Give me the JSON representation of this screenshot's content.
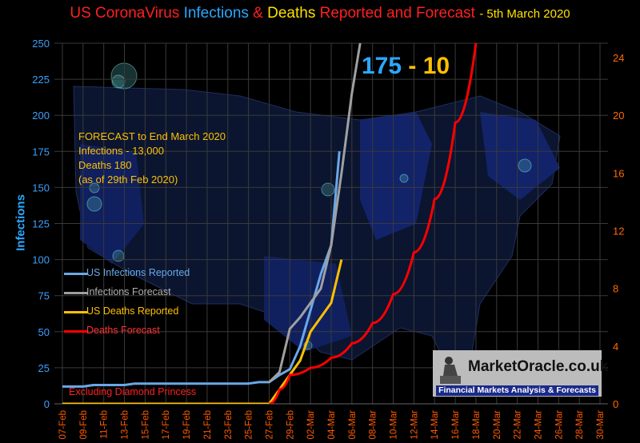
{
  "title": {
    "part1": "US CoronaVirus",
    "part2": "Infections",
    "part3": "&",
    "part4": "Deaths",
    "part5": "Reported and Forecast",
    "part6": "- 5th  March 2020"
  },
  "forecast_note": [
    "FORECAST to End March 2020",
    "Infections - 13,000",
    "Deaths 180",
    "(as of  29th Feb  2020)"
  ],
  "big_label": {
    "infections": "175",
    "sep": " - ",
    "deaths": "10"
  },
  "exclusion_note": "Excluding Diamond Princess",
  "logo": {
    "name": "MarketOracle.co.uk",
    "tagline": "Financial Markets Analysis & Forecasts"
  },
  "chart_data": {
    "type": "line",
    "ylabel": "Infections",
    "ylim": [
      0,
      250
    ],
    "y_ticks": [
      0,
      25,
      50,
      75,
      100,
      125,
      150,
      175,
      200,
      225,
      250
    ],
    "y2lim": [
      0,
      25
    ],
    "y2_ticks": [
      0,
      4,
      8,
      12,
      16,
      20,
      24
    ],
    "x": [
      "07-Feb",
      "08-Feb",
      "09-Feb",
      "10-Feb",
      "11-Feb",
      "12-Feb",
      "13-Feb",
      "14-Feb",
      "15-Feb",
      "16-Feb",
      "17-Feb",
      "18-Feb",
      "19-Feb",
      "20-Feb",
      "21-Feb",
      "22-Feb",
      "23-Feb",
      "24-Feb",
      "25-Feb",
      "26-Feb",
      "27-Feb",
      "28-Feb",
      "29-Feb",
      "01-Mar",
      "02-Mar",
      "03-Mar",
      "04-Mar",
      "05-Mar",
      "06-Mar",
      "07-Mar",
      "08-Mar",
      "09-Mar",
      "10-Mar",
      "11-Mar",
      "12-Mar",
      "13-Mar",
      "14-Mar",
      "15-Mar",
      "16-Mar",
      "17-Mar",
      "18-Mar",
      "19-Mar",
      "20-Mar",
      "21-Mar",
      "22-Mar",
      "23-Mar",
      "24-Mar",
      "25-Mar",
      "26-Mar",
      "27-Mar",
      "28-Mar",
      "29-Mar",
      "30-Mar"
    ],
    "x_ticks": [
      "07-Feb",
      "09-Feb",
      "11-Feb",
      "13-Feb",
      "15-Feb",
      "17-Feb",
      "19-Feb",
      "21-Feb",
      "23-Feb",
      "25-Feb",
      "27-Feb",
      "29-Feb",
      "02-Mar",
      "04-Mar",
      "06-Mar",
      "08-Mar",
      "10-Mar",
      "12-Mar",
      "14-Mar",
      "16-Mar",
      "18-Mar",
      "20-Mar",
      "22-Mar",
      "24-Mar",
      "26-Mar",
      "28-Mar",
      "30-Mar"
    ],
    "series": [
      {
        "name": "US Infections Reported",
        "axis": "left",
        "color": "#6aa8e8",
        "points": [
          [
            0,
            12
          ],
          [
            1,
            12
          ],
          [
            2,
            12
          ],
          [
            3,
            13
          ],
          [
            4,
            13
          ],
          [
            5,
            13
          ],
          [
            6,
            13
          ],
          [
            7,
            14
          ],
          [
            8,
            14
          ],
          [
            9,
            14
          ],
          [
            10,
            14
          ],
          [
            11,
            14
          ],
          [
            12,
            14
          ],
          [
            13,
            14
          ],
          [
            14,
            14
          ],
          [
            15,
            14
          ],
          [
            16,
            14
          ],
          [
            17,
            14
          ],
          [
            18,
            14
          ],
          [
            19,
            15
          ],
          [
            20,
            15
          ],
          [
            21,
            20
          ],
          [
            22,
            24
          ],
          [
            23,
            40
          ],
          [
            24,
            65
          ],
          [
            25,
            90
          ],
          [
            26,
            110
          ],
          [
            26.8,
            175
          ]
        ]
      },
      {
        "name": "Infections Forecast",
        "axis": "left",
        "color": "#a0a0a0",
        "points": [
          [
            20,
            15
          ],
          [
            21,
            22
          ],
          [
            22,
            52
          ],
          [
            23,
            60
          ],
          [
            24,
            70
          ],
          [
            25,
            80
          ],
          [
            26,
            110
          ],
          [
            27,
            160
          ],
          [
            28,
            215
          ],
          [
            28.8,
            250
          ]
        ]
      },
      {
        "name": "US Deaths Reported",
        "axis": "right",
        "color": "#ffc000",
        "points": [
          [
            0,
            0
          ],
          [
            20,
            0
          ],
          [
            21,
            1
          ],
          [
            22,
            2
          ],
          [
            23,
            3
          ],
          [
            24,
            5
          ],
          [
            25,
            6
          ],
          [
            26,
            7
          ],
          [
            27,
            10
          ]
        ]
      },
      {
        "name": "Deaths Forecast",
        "axis": "right",
        "color": "#ff0000",
        "points": [
          [
            20,
            0
          ],
          [
            21,
            1
          ],
          [
            22,
            2
          ],
          [
            24,
            2.5
          ],
          [
            26,
            3.2
          ],
          [
            28,
            4.2
          ],
          [
            30,
            5.6
          ],
          [
            32,
            7.6
          ],
          [
            34,
            10.5
          ],
          [
            36,
            14.2
          ],
          [
            38,
            19.5
          ],
          [
            40,
            25
          ]
        ]
      }
    ]
  }
}
